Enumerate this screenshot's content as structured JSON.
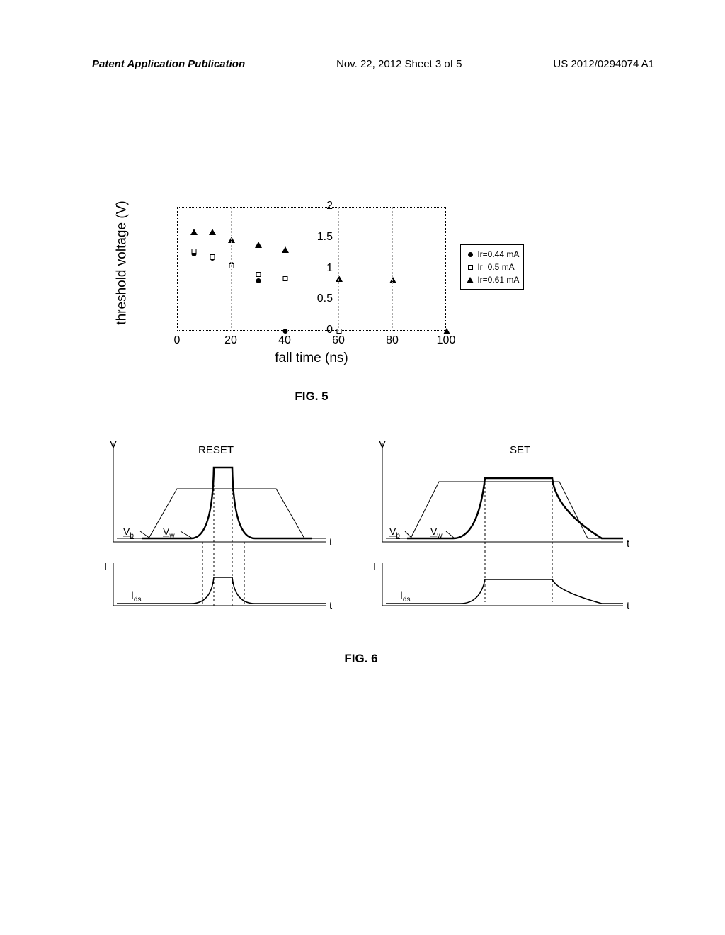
{
  "header": {
    "left": "Patent Application Publication",
    "center": "Nov. 22, 2012  Sheet 3 of 5",
    "right": "US 2012/0294074 A1"
  },
  "fig5": {
    "caption": "FIG. 5",
    "type": "scatter",
    "xlabel": "fall time (ns)",
    "ylabel": "threshold voltage (V)",
    "xlim": [
      0,
      100
    ],
    "ylim": [
      0,
      2
    ],
    "xtick_step": 20,
    "ytick_step": 0.5,
    "xticks": [
      0,
      20,
      40,
      60,
      80,
      100
    ],
    "yticks": [
      0,
      0.5,
      1,
      1.5,
      2
    ],
    "label_fontsize": 19,
    "tick_fontsize": 16,
    "grid_color": "#aaaaaa",
    "background_color": "#ffffff",
    "marker_size": 7,
    "series": [
      {
        "name": "Ir=0.44 mA",
        "marker": "circle",
        "color": "#000000",
        "fill": "#000000",
        "points": [
          {
            "x": 6,
            "y": 1.25
          },
          {
            "x": 13,
            "y": 1.18
          },
          {
            "x": 20,
            "y": 1.08
          },
          {
            "x": 30,
            "y": 0.82
          },
          {
            "x": 40,
            "y": 0.0
          }
        ]
      },
      {
        "name": "Ir=0.5 mA",
        "marker": "square",
        "color": "#000000",
        "fill": "#ffffff",
        "points": [
          {
            "x": 6,
            "y": 1.3
          },
          {
            "x": 13,
            "y": 1.2
          },
          {
            "x": 20,
            "y": 1.05
          },
          {
            "x": 30,
            "y": 0.92
          },
          {
            "x": 40,
            "y": 0.85
          },
          {
            "x": 60,
            "y": 0.0
          }
        ]
      },
      {
        "name": "Ir=0.61 mA",
        "marker": "triangle",
        "color": "#000000",
        "fill": "#000000",
        "points": [
          {
            "x": 6,
            "y": 1.6
          },
          {
            "x": 13,
            "y": 1.6
          },
          {
            "x": 20,
            "y": 1.48
          },
          {
            "x": 30,
            "y": 1.4
          },
          {
            "x": 40,
            "y": 1.32
          },
          {
            "x": 60,
            "y": 0.85
          },
          {
            "x": 80,
            "y": 0.83
          },
          {
            "x": 100,
            "y": 0.0
          }
        ]
      }
    ]
  },
  "fig6": {
    "caption": "FIG. 6",
    "type": "waveform",
    "line_color": "#000000",
    "thin_line_width": 1,
    "thick_line_width": 2.5,
    "dash_color": "#000000",
    "panels": [
      {
        "title": "RESET",
        "v_label": "V",
        "t_label": "t",
        "i_label": "I",
        "vb_label": "V",
        "vb_sub": "b",
        "vw_label": "V",
        "vw_sub": "w",
        "ids_label": "I",
        "ids_sub": "ds"
      },
      {
        "title": "SET",
        "v_label": "V",
        "t_label": "t",
        "i_label": "I",
        "vb_label": "V",
        "vb_sub": "b",
        "vw_label": "V",
        "vw_sub": "w",
        "ids_label": "I",
        "ids_sub": "ds"
      }
    ]
  }
}
